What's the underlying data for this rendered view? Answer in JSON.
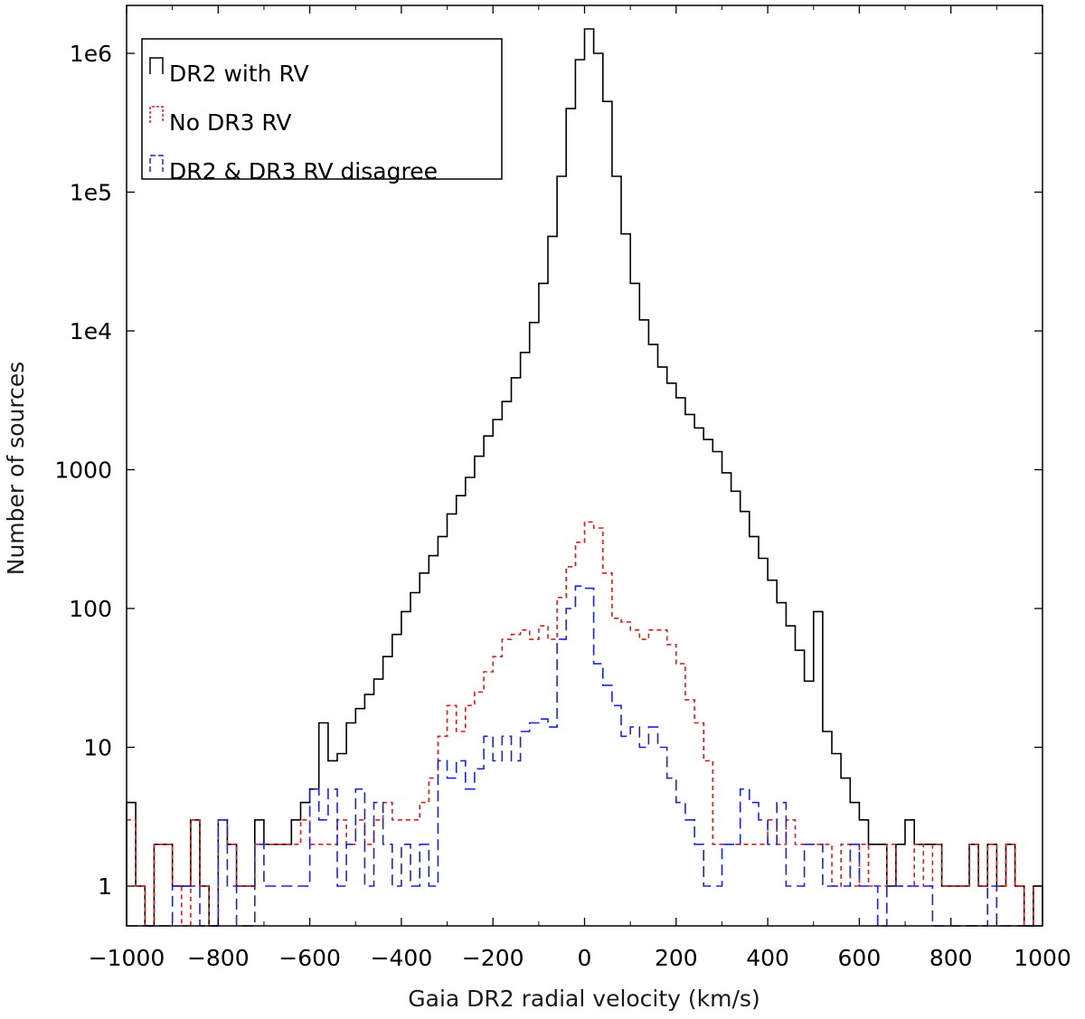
{
  "chart_data": {
    "type": "histogram",
    "title": "",
    "xlabel": "Gaia DR2 radial velocity (km/s)",
    "ylabel": "Number of sources",
    "yscale": "log",
    "xlim": [
      -1000,
      1000
    ],
    "ylim": [
      0.5,
      2200000
    ],
    "bin_width": 20,
    "x_ticks": [
      -1000,
      -800,
      -600,
      -400,
      -200,
      0,
      200,
      400,
      600,
      800,
      1000
    ],
    "x_tick_labels": [
      "−1000",
      "−800",
      "−600",
      "−400",
      "−200",
      "0",
      "200",
      "400",
      "600",
      "800",
      "1000"
    ],
    "y_ticks": [
      1,
      10,
      100,
      1000,
      10000,
      100000,
      1000000
    ],
    "y_tick_labels": [
      "1",
      "10",
      "100",
      "1000",
      "1e4",
      "1e5",
      "1e6"
    ],
    "legend_position": "top-left",
    "series": [
      {
        "name": "DR2 with RV",
        "color": "#000000",
        "dash": "solid",
        "bins": [
          [
            -1000,
            4
          ],
          [
            -980,
            1
          ],
          [
            -960,
            0
          ],
          [
            -940,
            2
          ],
          [
            -920,
            2
          ],
          [
            -900,
            1
          ],
          [
            -880,
            1
          ],
          [
            -860,
            3
          ],
          [
            -840,
            1
          ],
          [
            -820,
            0
          ],
          [
            -800,
            3
          ],
          [
            -780,
            2
          ],
          [
            -760,
            1
          ],
          [
            -740,
            1
          ],
          [
            -720,
            3
          ],
          [
            -700,
            2
          ],
          [
            -680,
            2
          ],
          [
            -660,
            2
          ],
          [
            -640,
            3
          ],
          [
            -620,
            4
          ],
          [
            -600,
            5
          ],
          [
            -580,
            15
          ],
          [
            -560,
            8
          ],
          [
            -540,
            9
          ],
          [
            -520,
            15
          ],
          [
            -500,
            19
          ],
          [
            -480,
            24
          ],
          [
            -460,
            31
          ],
          [
            -440,
            45
          ],
          [
            -420,
            65
          ],
          [
            -400,
            95
          ],
          [
            -380,
            130
          ],
          [
            -360,
            180
          ],
          [
            -340,
            240
          ],
          [
            -320,
            330
          ],
          [
            -300,
            480
          ],
          [
            -280,
            650
          ],
          [
            -260,
            880
          ],
          [
            -240,
            1250
          ],
          [
            -220,
            1750
          ],
          [
            -200,
            2300
          ],
          [
            -180,
            3100
          ],
          [
            -160,
            4600
          ],
          [
            -140,
            7000
          ],
          [
            -120,
            11500
          ],
          [
            -100,
            22000
          ],
          [
            -80,
            48000
          ],
          [
            -60,
            130000
          ],
          [
            -40,
            400000
          ],
          [
            -20,
            900000
          ],
          [
            0,
            1500000
          ],
          [
            20,
            1000000
          ],
          [
            40,
            450000
          ],
          [
            60,
            130000
          ],
          [
            80,
            50000
          ],
          [
            100,
            22000
          ],
          [
            120,
            12000
          ],
          [
            140,
            8000
          ],
          [
            160,
            5500
          ],
          [
            180,
            4200
          ],
          [
            200,
            3300
          ],
          [
            220,
            2500
          ],
          [
            240,
            2000
          ],
          [
            260,
            1650
          ],
          [
            280,
            1350
          ],
          [
            300,
            950
          ],
          [
            320,
            700
          ],
          [
            340,
            500
          ],
          [
            360,
            330
          ],
          [
            380,
            230
          ],
          [
            400,
            160
          ],
          [
            420,
            110
          ],
          [
            440,
            75
          ],
          [
            460,
            50
          ],
          [
            480,
            30
          ],
          [
            500,
            95
          ],
          [
            520,
            13
          ],
          [
            540,
            9
          ],
          [
            560,
            6
          ],
          [
            580,
            4
          ],
          [
            600,
            3
          ],
          [
            620,
            2
          ],
          [
            640,
            2
          ],
          [
            660,
            1
          ],
          [
            680,
            2
          ],
          [
            700,
            3
          ],
          [
            720,
            2
          ],
          [
            740,
            2
          ],
          [
            760,
            2
          ],
          [
            780,
            1
          ],
          [
            800,
            1
          ],
          [
            820,
            1
          ],
          [
            840,
            2
          ],
          [
            860,
            1
          ],
          [
            880,
            2
          ],
          [
            900,
            1
          ],
          [
            920,
            2
          ],
          [
            940,
            1
          ],
          [
            960,
            0
          ],
          [
            980,
            1
          ]
        ]
      },
      {
        "name": "No DR3 RV",
        "color": "#dd1c1c",
        "dash": "short-dash",
        "bins": [
          [
            -1000,
            3
          ],
          [
            -980,
            1
          ],
          [
            -960,
            0
          ],
          [
            -940,
            2
          ],
          [
            -920,
            2
          ],
          [
            -900,
            1
          ],
          [
            -880,
            0
          ],
          [
            -860,
            3
          ],
          [
            -840,
            1
          ],
          [
            -820,
            0
          ],
          [
            -800,
            3
          ],
          [
            -780,
            2
          ],
          [
            -760,
            1
          ],
          [
            -740,
            1
          ],
          [
            -720,
            2
          ],
          [
            -700,
            2
          ],
          [
            -680,
            2
          ],
          [
            -660,
            2
          ],
          [
            -640,
            2
          ],
          [
            -620,
            3
          ],
          [
            -600,
            2
          ],
          [
            -580,
            2
          ],
          [
            -560,
            2
          ],
          [
            -540,
            3
          ],
          [
            -520,
            2
          ],
          [
            -500,
            3
          ],
          [
            -480,
            2
          ],
          [
            -460,
            3
          ],
          [
            -440,
            4
          ],
          [
            -420,
            3
          ],
          [
            -400,
            3
          ],
          [
            -380,
            3
          ],
          [
            -360,
            4
          ],
          [
            -340,
            6
          ],
          [
            -320,
            12
          ],
          [
            -300,
            20
          ],
          [
            -280,
            13
          ],
          [
            -260,
            20
          ],
          [
            -240,
            25
          ],
          [
            -220,
            35
          ],
          [
            -200,
            45
          ],
          [
            -180,
            60
          ],
          [
            -160,
            65
          ],
          [
            -140,
            70
          ],
          [
            -120,
            60
          ],
          [
            -100,
            75
          ],
          [
            -80,
            60
          ],
          [
            -60,
            120
          ],
          [
            -40,
            200
          ],
          [
            -20,
            300
          ],
          [
            0,
            420
          ],
          [
            20,
            380
          ],
          [
            40,
            180
          ],
          [
            60,
            85
          ],
          [
            80,
            80
          ],
          [
            100,
            70
          ],
          [
            120,
            60
          ],
          [
            140,
            70
          ],
          [
            160,
            70
          ],
          [
            180,
            55
          ],
          [
            200,
            40
          ],
          [
            220,
            22
          ],
          [
            240,
            15
          ],
          [
            260,
            8
          ],
          [
            280,
            2
          ],
          [
            300,
            2
          ],
          [
            320,
            2
          ],
          [
            340,
            2
          ],
          [
            360,
            2
          ],
          [
            380,
            2
          ],
          [
            400,
            3
          ],
          [
            420,
            2
          ],
          [
            440,
            3
          ],
          [
            460,
            2
          ],
          [
            480,
            2
          ],
          [
            500,
            2
          ],
          [
            520,
            2
          ],
          [
            540,
            1
          ],
          [
            560,
            2
          ],
          [
            580,
            1
          ],
          [
            600,
            2
          ],
          [
            620,
            1
          ],
          [
            640,
            1
          ],
          [
            660,
            2
          ],
          [
            680,
            1
          ],
          [
            700,
            1
          ],
          [
            720,
            2
          ],
          [
            740,
            1
          ],
          [
            760,
            2
          ],
          [
            780,
            1
          ],
          [
            800,
            1
          ],
          [
            820,
            1
          ],
          [
            840,
            2
          ],
          [
            860,
            1
          ],
          [
            880,
            2
          ],
          [
            900,
            1
          ],
          [
            920,
            2
          ],
          [
            940,
            1
          ],
          [
            960,
            0
          ],
          [
            980,
            1
          ]
        ]
      },
      {
        "name": "DR2 & DR3 RV disagree",
        "color": "#1a24e0",
        "dash": "long-dash",
        "bins": [
          [
            -1000,
            0
          ],
          [
            -980,
            0
          ],
          [
            -960,
            0
          ],
          [
            -940,
            0
          ],
          [
            -920,
            0
          ],
          [
            -900,
            1
          ],
          [
            -880,
            1
          ],
          [
            -860,
            1
          ],
          [
            -840,
            0
          ],
          [
            -820,
            0
          ],
          [
            -800,
            3
          ],
          [
            -780,
            1
          ],
          [
            -760,
            0
          ],
          [
            -740,
            0
          ],
          [
            -720,
            2
          ],
          [
            -700,
            1
          ],
          [
            -680,
            1
          ],
          [
            -660,
            1
          ],
          [
            -640,
            1
          ],
          [
            -620,
            1
          ],
          [
            -600,
            5
          ],
          [
            -580,
            3
          ],
          [
            -560,
            5
          ],
          [
            -540,
            1
          ],
          [
            -520,
            2
          ],
          [
            -500,
            5
          ],
          [
            -480,
            1
          ],
          [
            -460,
            4
          ],
          [
            -440,
            2
          ],
          [
            -420,
            1
          ],
          [
            -400,
            2
          ],
          [
            -380,
            1
          ],
          [
            -360,
            2
          ],
          [
            -340,
            1
          ],
          [
            -320,
            8
          ],
          [
            -300,
            6
          ],
          [
            -280,
            8
          ],
          [
            -260,
            5
          ],
          [
            -240,
            7
          ],
          [
            -220,
            12
          ],
          [
            -200,
            8
          ],
          [
            -180,
            12
          ],
          [
            -160,
            8
          ],
          [
            -140,
            13
          ],
          [
            -120,
            15
          ],
          [
            -100,
            16
          ],
          [
            -80,
            14
          ],
          [
            -60,
            60
          ],
          [
            -40,
            100
          ],
          [
            -20,
            145
          ],
          [
            0,
            140
          ],
          [
            20,
            40
          ],
          [
            40,
            28
          ],
          [
            60,
            20
          ],
          [
            80,
            12
          ],
          [
            100,
            14
          ],
          [
            120,
            10
          ],
          [
            140,
            14
          ],
          [
            160,
            10
          ],
          [
            180,
            6
          ],
          [
            200,
            4
          ],
          [
            220,
            3
          ],
          [
            240,
            2
          ],
          [
            260,
            1
          ],
          [
            280,
            1
          ],
          [
            300,
            2
          ],
          [
            320,
            2
          ],
          [
            340,
            5
          ],
          [
            360,
            4
          ],
          [
            380,
            3
          ],
          [
            400,
            2
          ],
          [
            420,
            4
          ],
          [
            440,
            1
          ],
          [
            460,
            1
          ],
          [
            480,
            2
          ],
          [
            500,
            2
          ],
          [
            520,
            1
          ],
          [
            540,
            1
          ],
          [
            560,
            1
          ],
          [
            580,
            2
          ],
          [
            600,
            1
          ],
          [
            620,
            1
          ],
          [
            640,
            0
          ],
          [
            660,
            1
          ],
          [
            680,
            1
          ],
          [
            700,
            1
          ],
          [
            720,
            1
          ],
          [
            740,
            1
          ],
          [
            760,
            0
          ],
          [
            780,
            0
          ],
          [
            800,
            0
          ],
          [
            820,
            0
          ],
          [
            840,
            0
          ],
          [
            860,
            0
          ],
          [
            880,
            1
          ],
          [
            900,
            0
          ],
          [
            920,
            0
          ],
          [
            940,
            0
          ],
          [
            960,
            0
          ],
          [
            980,
            0
          ]
        ]
      }
    ]
  }
}
